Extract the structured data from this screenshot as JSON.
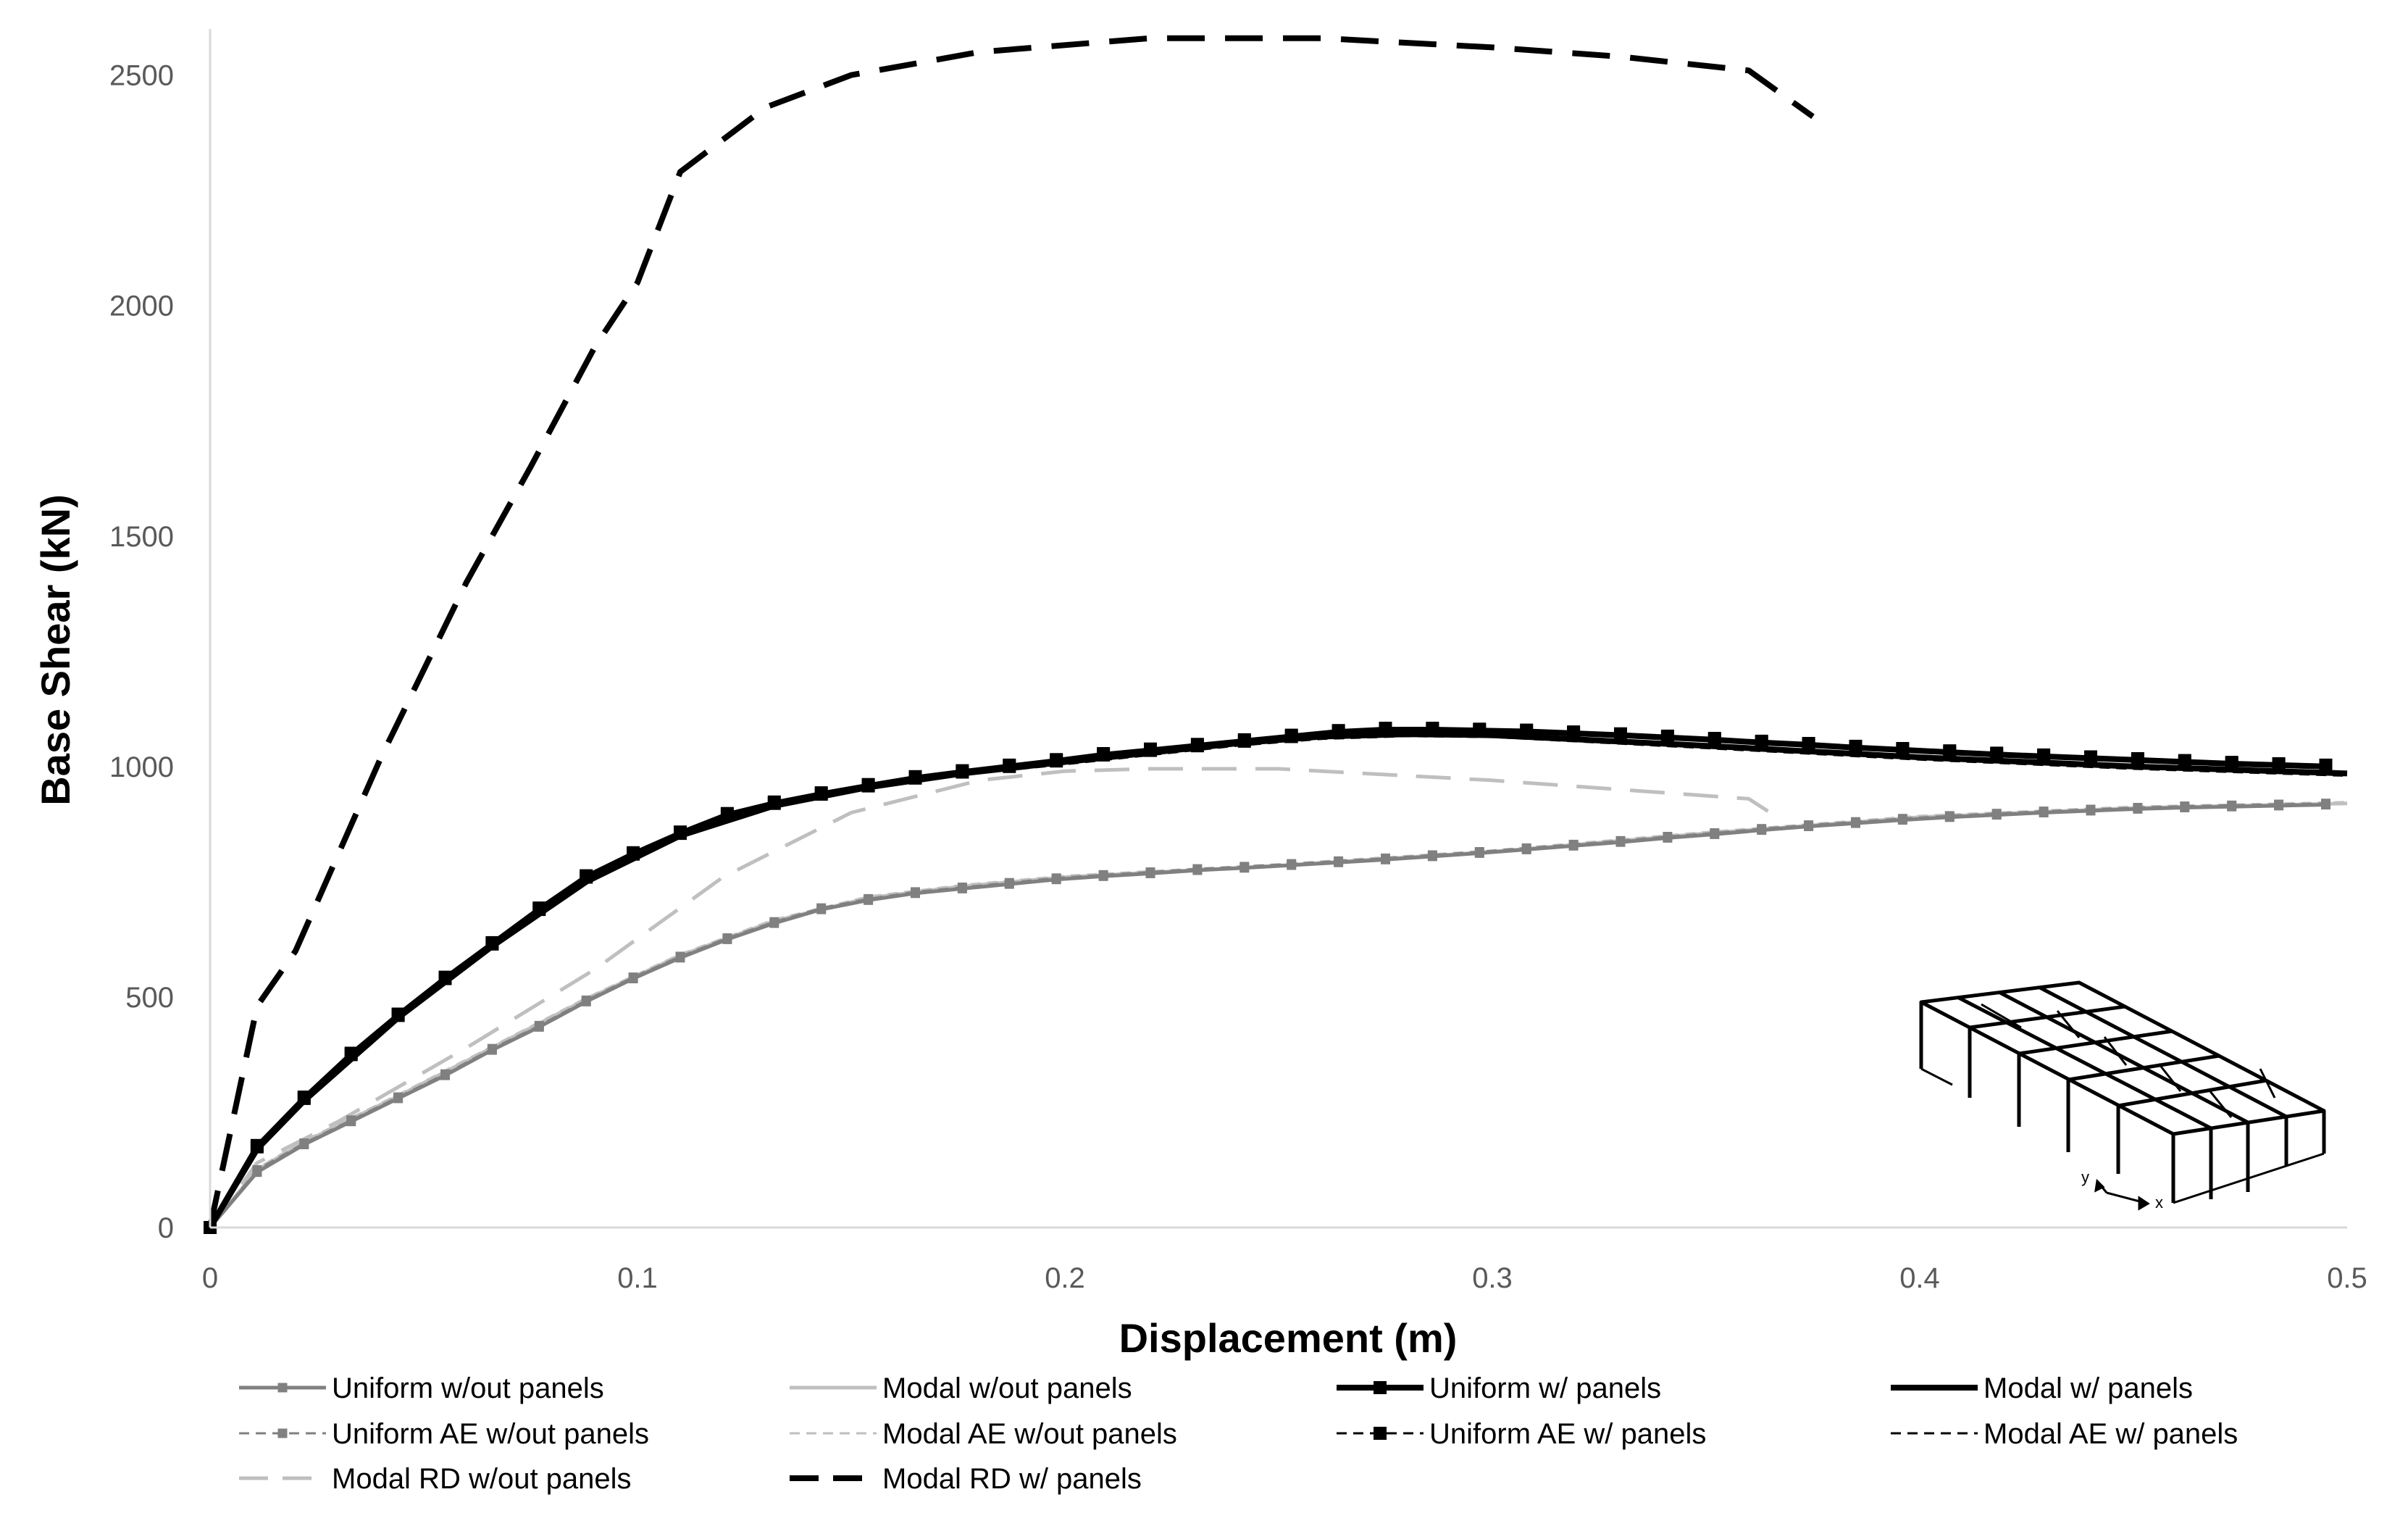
{
  "chart_data": {
    "type": "line",
    "title": "",
    "xlabel": "Displacement (m)",
    "ylabel": "Base Shear (kN)",
    "xlim": [
      0,
      0.5
    ],
    "ylim": [
      0,
      2600
    ],
    "x_ticks": [
      "0",
      "0.1",
      "0.2",
      "0.3",
      "0.4",
      "0.5"
    ],
    "y_ticks": [
      "0",
      "500",
      "1000",
      "1500",
      "2000",
      "2500"
    ],
    "grid": false,
    "legend_position": "bottom",
    "series": [
      {
        "name": "Uniform w/out panels",
        "color": "#808080",
        "style": "solid",
        "marker": "square",
        "weight": "medium",
        "x": [
          0,
          0.011,
          0.022,
          0.033,
          0.044,
          0.055,
          0.066,
          0.077,
          0.088,
          0.099,
          0.11,
          0.121,
          0.132,
          0.143,
          0.154,
          0.165,
          0.176,
          0.187,
          0.198,
          0.209,
          0.22,
          0.231,
          0.242,
          0.253,
          0.264,
          0.275,
          0.286,
          0.297,
          0.308,
          0.319,
          0.33,
          0.341,
          0.352,
          0.363,
          0.374,
          0.385,
          0.396,
          0.407,
          0.418,
          0.429,
          0.44,
          0.451,
          0.462,
          0.473,
          0.484,
          0.495
        ],
        "y": [
          0,
          120,
          180,
          230,
          280,
          330,
          385,
          435,
          490,
          540,
          585,
          625,
          660,
          690,
          710,
          725,
          735,
          745,
          755,
          762,
          768,
          775,
          780,
          786,
          792,
          798,
          805,
          812,
          820,
          828,
          836,
          845,
          853,
          862,
          870,
          877,
          884,
          890,
          895,
          900,
          904,
          908,
          911,
          913,
          915,
          917
        ]
      },
      {
        "name": "Modal w/out panels",
        "color": "#bfbfbf",
        "style": "solid",
        "marker": "none",
        "weight": "medium",
        "x": [
          0,
          0.011,
          0.022,
          0.044,
          0.066,
          0.088,
          0.11,
          0.132,
          0.154,
          0.176,
          0.2,
          0.25,
          0.3,
          0.35,
          0.4,
          0.45,
          0.5
        ],
        "y": [
          0,
          125,
          185,
          285,
          390,
          495,
          590,
          665,
          715,
          740,
          760,
          785,
          815,
          855,
          890,
          910,
          920
        ]
      },
      {
        "name": "Uniform w/ panels",
        "color": "#000000",
        "style": "solid",
        "marker": "square",
        "weight": "thick",
        "x": [
          0,
          0.011,
          0.022,
          0.033,
          0.044,
          0.055,
          0.066,
          0.077,
          0.088,
          0.099,
          0.11,
          0.121,
          0.132,
          0.143,
          0.154,
          0.165,
          0.176,
          0.187,
          0.198,
          0.209,
          0.22,
          0.231,
          0.242,
          0.253,
          0.264,
          0.275,
          0.286,
          0.297,
          0.308,
          0.319,
          0.33,
          0.341,
          0.352,
          0.363,
          0.374,
          0.385,
          0.396,
          0.407,
          0.418,
          0.429,
          0.44,
          0.451,
          0.462,
          0.473,
          0.484,
          0.495
        ],
        "y": [
          0,
          175,
          280,
          375,
          460,
          540,
          615,
          690,
          760,
          810,
          855,
          895,
          920,
          940,
          958,
          975,
          988,
          1000,
          1012,
          1025,
          1035,
          1045,
          1055,
          1065,
          1075,
          1080,
          1080,
          1078,
          1076,
          1072,
          1068,
          1063,
          1058,
          1052,
          1047,
          1041,
          1036,
          1031,
          1026,
          1022,
          1018,
          1014,
          1010,
          1006,
          1003,
          1000
        ]
      },
      {
        "name": "Modal w/ panels",
        "color": "#000000",
        "style": "solid",
        "marker": "none",
        "weight": "thick",
        "x": [
          0,
          0.011,
          0.022,
          0.044,
          0.066,
          0.088,
          0.11,
          0.132,
          0.154,
          0.176,
          0.2,
          0.22,
          0.24,
          0.26,
          0.28,
          0.3,
          0.35,
          0.4,
          0.45,
          0.5
        ],
        "y": [
          0,
          170,
          275,
          455,
          610,
          750,
          850,
          915,
          955,
          985,
          1010,
          1030,
          1050,
          1065,
          1070,
          1068,
          1045,
          1020,
          1000,
          985
        ]
      },
      {
        "name": "Uniform AE w/out panels",
        "color": "#808080",
        "style": "dashed",
        "marker": "square",
        "weight": "thin",
        "x": [
          0,
          0.011,
          0.022,
          0.033,
          0.044,
          0.055,
          0.066,
          0.077,
          0.088,
          0.099,
          0.11,
          0.121,
          0.132,
          0.143,
          0.154,
          0.165,
          0.176,
          0.187,
          0.198,
          0.209,
          0.22,
          0.231,
          0.242,
          0.253,
          0.264,
          0.275,
          0.286,
          0.297,
          0.308,
          0.319,
          0.33,
          0.341,
          0.352,
          0.363,
          0.374,
          0.385,
          0.396,
          0.407,
          0.418,
          0.429,
          0.44,
          0.451,
          0.462,
          0.473,
          0.484,
          0.495
        ],
        "y": [
          0,
          125,
          183,
          233,
          283,
          333,
          388,
          438,
          493,
          543,
          588,
          628,
          663,
          693,
          713,
          728,
          738,
          748,
          758,
          765,
          771,
          778,
          783,
          789,
          795,
          801,
          808,
          815,
          823,
          831,
          839,
          848,
          856,
          865,
          873,
          880,
          887,
          893,
          898,
          903,
          907,
          911,
          914,
          916,
          918,
          920
        ]
      },
      {
        "name": "Modal AE w/out panels",
        "color": "#bfbfbf",
        "style": "dashed",
        "marker": "none",
        "weight": "thin",
        "x": [
          0,
          0.011,
          0.022,
          0.044,
          0.066,
          0.088,
          0.11,
          0.132,
          0.154,
          0.176,
          0.2,
          0.25,
          0.3,
          0.35,
          0.4,
          0.45,
          0.5
        ],
        "y": [
          0,
          128,
          188,
          288,
          393,
          498,
          593,
          668,
          718,
          743,
          763,
          788,
          818,
          858,
          893,
          913,
          923
        ]
      },
      {
        "name": "Uniform AE w/ panels",
        "color": "#000000",
        "style": "dashed",
        "marker": "square",
        "weight": "thin",
        "x": [
          0,
          0.011,
          0.022,
          0.033,
          0.044,
          0.055,
          0.066,
          0.077,
          0.088,
          0.099,
          0.11,
          0.121,
          0.132,
          0.143,
          0.154,
          0.165,
          0.176,
          0.187,
          0.198,
          0.209,
          0.22,
          0.231,
          0.242,
          0.253,
          0.264,
          0.275,
          0.286,
          0.297,
          0.308,
          0.319,
          0.33,
          0.341,
          0.352,
          0.363,
          0.374,
          0.385,
          0.396,
          0.407,
          0.418,
          0.429,
          0.44,
          0.451,
          0.462,
          0.473,
          0.484,
          0.495
        ],
        "y": [
          0,
          178,
          283,
          378,
          463,
          543,
          618,
          693,
          763,
          813,
          858,
          898,
          923,
          943,
          961,
          978,
          991,
          1003,
          1015,
          1028,
          1038,
          1048,
          1058,
          1068,
          1078,
          1083,
          1083,
          1081,
          1079,
          1075,
          1071,
          1066,
          1061,
          1055,
          1050,
          1044,
          1039,
          1034,
          1029,
          1025,
          1021,
          1017,
          1013,
          1009,
          1006,
          1003
        ]
      },
      {
        "name": "Modal AE w/ panels",
        "color": "#000000",
        "style": "dashed",
        "marker": "none",
        "weight": "thin",
        "x": [
          0,
          0.011,
          0.022,
          0.044,
          0.066,
          0.088,
          0.11,
          0.132,
          0.154,
          0.176,
          0.2,
          0.22,
          0.24,
          0.26,
          0.28,
          0.3,
          0.35,
          0.4,
          0.45,
          0.5
        ],
        "y": [
          0,
          168,
          272,
          452,
          607,
          747,
          847,
          912,
          952,
          982,
          1005,
          1025,
          1045,
          1060,
          1066,
          1064,
          1040,
          1015,
          995,
          980
        ]
      },
      {
        "name": "Modal RD w/out panels",
        "color": "#bfbfbf",
        "style": "longdash",
        "marker": "none",
        "weight": "medium",
        "x": [
          0,
          0.011,
          0.03,
          0.06,
          0.09,
          0.12,
          0.15,
          0.18,
          0.2,
          0.22,
          0.25,
          0.3,
          0.36,
          0.365
        ],
        "y": [
          0,
          140,
          230,
          390,
          560,
          760,
          900,
          970,
          990,
          995,
          995,
          970,
          930,
          900
        ]
      },
      {
        "name": "Modal RD w/ panels",
        "color": "#000000",
        "style": "longdash",
        "marker": "none",
        "weight": "thick",
        "x": [
          0,
          0.011,
          0.02,
          0.04,
          0.06,
          0.075,
          0.09,
          0.1,
          0.11,
          0.13,
          0.15,
          0.18,
          0.22,
          0.26,
          0.3,
          0.33,
          0.36,
          0.375
        ],
        "y": [
          0,
          480,
          600,
          1020,
          1400,
          1650,
          1910,
          2050,
          2290,
          2430,
          2500,
          2550,
          2580,
          2580,
          2560,
          2540,
          2510,
          2410
        ]
      }
    ]
  }
}
